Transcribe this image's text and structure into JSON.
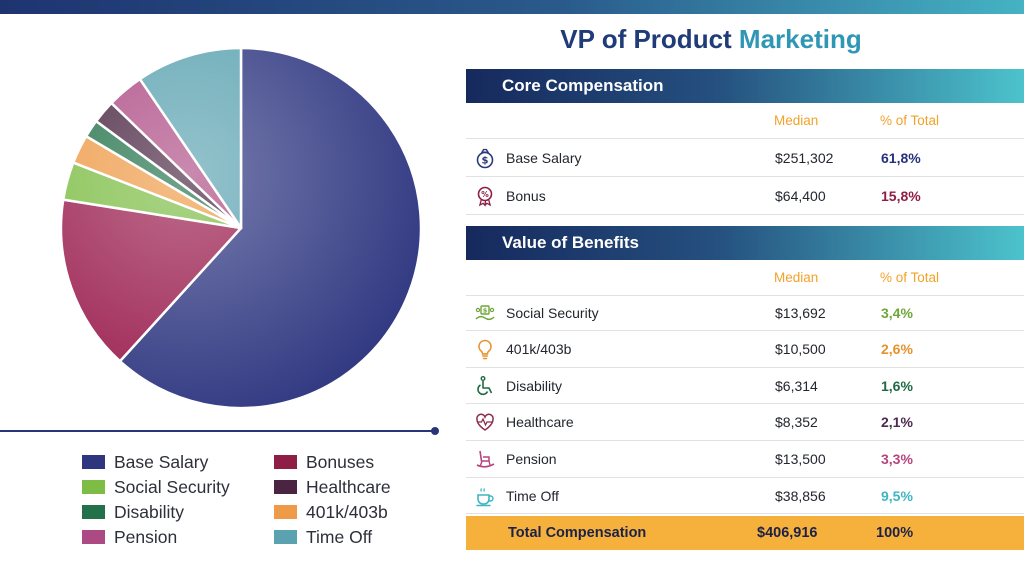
{
  "title": {
    "main": "VP of Product Marketing",
    "accent_word": "Marketing"
  },
  "chart_data": {
    "type": "pie",
    "title": "",
    "slices": [
      {
        "label": "Base Salary",
        "value": 61.8,
        "color": "#2e3680"
      },
      {
        "label": "Bonuses",
        "value": 15.8,
        "color": "#9a1d4e"
      },
      {
        "label": "Social Security",
        "value": 3.4,
        "color": "#7dbd45"
      },
      {
        "label": "401k/403b",
        "value": 2.6,
        "color": "#ee9a46"
      },
      {
        "label": "Disability",
        "value": 1.6,
        "color": "#22714a"
      },
      {
        "label": "Healthcare",
        "value": 2.1,
        "color": "#47233f"
      },
      {
        "label": "Pension",
        "value": 3.3,
        "color": "#ad4a83"
      },
      {
        "label": "Time Off",
        "value": 9.5,
        "color": "#5aa2b0"
      }
    ],
    "legend": [
      {
        "label": "Base Salary",
        "color": "#2e3680"
      },
      {
        "label": "Bonuses",
        "color": "#8e1e45"
      },
      {
        "label": "Social Security",
        "color": "#7dbd45"
      },
      {
        "label": "Healthcare",
        "color": "#4a2440"
      },
      {
        "label": "Disability",
        "color": "#22714a"
      },
      {
        "label": "401k/403b",
        "color": "#ee9a46"
      },
      {
        "label": "Pension",
        "color": "#ad4a83"
      },
      {
        "label": "Time Off",
        "color": "#5aa2b0"
      }
    ],
    "legend_placement": "bottom"
  },
  "core": {
    "header": "Core Compensation",
    "col_median": "Median",
    "col_pct": "% of Total",
    "rows": [
      {
        "icon": "money-bag-icon",
        "label": "Base Salary",
        "median": "$251,302",
        "pct": "61,8%",
        "pct_color": "#26317a"
      },
      {
        "icon": "bonus-badge-icon",
        "label": "Bonus",
        "median": "$64,400",
        "pct": "15,8%",
        "pct_color": "#8e1e45"
      }
    ]
  },
  "benefits": {
    "header": "Value of Benefits",
    "col_median": "Median",
    "col_pct": "% of Total",
    "rows": [
      {
        "icon": "social-security-icon",
        "label": "Social Security",
        "median": "$13,692",
        "pct": "3,4%",
        "pct_color": "#6fa63a"
      },
      {
        "icon": "lightbulb-icon",
        "label": "401k/403b",
        "median": "$10,500",
        "pct": "2,6%",
        "pct_color": "#e6922d"
      },
      {
        "icon": "wheelchair-icon",
        "label": "Disability",
        "median": "$6,314",
        "pct": "1,6%",
        "pct_color": "#1e6a43"
      },
      {
        "icon": "heart-pulse-icon",
        "label": "Healthcare",
        "median": "$8,352",
        "pct": "2,1%",
        "pct_color": "#4d2a4f"
      },
      {
        "icon": "rocking-chair-icon",
        "label": "Pension",
        "median": "$13,500",
        "pct": "3,3%",
        "pct_color": "#b5457e"
      },
      {
        "icon": "coffee-cup-icon",
        "label": "Time Off",
        "median": "$38,856",
        "pct": "9,5%",
        "pct_color": "#3fb6c2"
      }
    ]
  },
  "total": {
    "label": "Total Compensation",
    "value": "$406,916",
    "pct": "100%"
  }
}
